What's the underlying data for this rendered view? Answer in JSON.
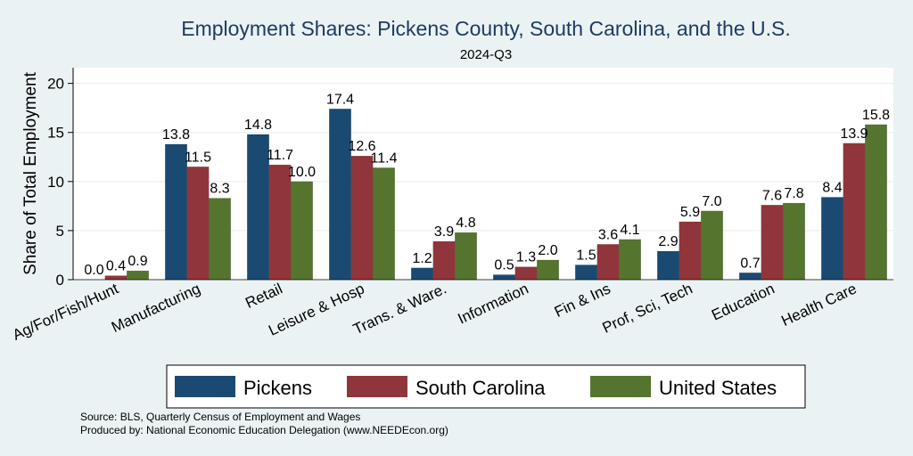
{
  "chart_data": {
    "type": "bar",
    "title": "Employment Shares: Pickens County, South Carolina, and the U.S.",
    "subtitle": "2024-Q3",
    "xlabel": "",
    "ylabel": "Share of Total Employment",
    "ylim": [
      0,
      21.6
    ],
    "yticks": [
      0,
      5,
      10,
      15,
      20
    ],
    "grid": true,
    "legend_position": "bottom",
    "categories": [
      "Ag/For/Fish/Hunt",
      "Manufacturing",
      "Retail",
      "Leisure & Hosp",
      "Trans. & Ware.",
      "Information",
      "Fin & Ins",
      "Prof, Sci, Tech",
      "Education",
      "Health Care"
    ],
    "series": [
      {
        "name": "Pickens",
        "color": "#1a4a72",
        "values": [
          0.0,
          13.8,
          14.8,
          17.4,
          1.2,
          0.5,
          1.5,
          2.9,
          0.7,
          8.4
        ]
      },
      {
        "name": "South Carolina",
        "color": "#90353b",
        "values": [
          0.4,
          11.5,
          11.7,
          12.6,
          3.9,
          1.3,
          3.6,
          5.9,
          7.6,
          13.9
        ]
      },
      {
        "name": "United States",
        "color": "#55752f",
        "values": [
          0.9,
          8.3,
          10.0,
          11.4,
          4.8,
          2.0,
          4.1,
          7.0,
          7.8,
          15.8
        ]
      }
    ]
  },
  "notes": {
    "source": "Source: BLS, Quarterly Census of Employment and Wages",
    "produced": "Produced by: National Economic Education Delegation (www.NEEDEcon.org)"
  }
}
